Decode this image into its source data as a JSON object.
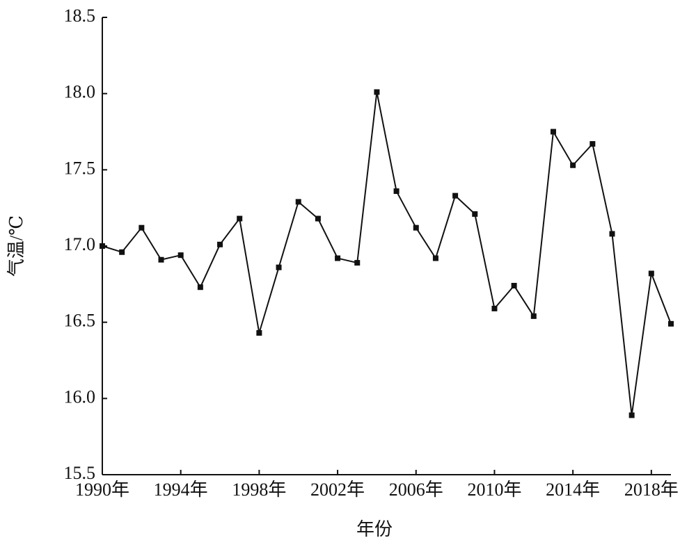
{
  "chart_data": {
    "type": "line",
    "xlabel": "年份",
    "ylabel": "气温/℃",
    "x": [
      1990,
      1991,
      1992,
      1993,
      1994,
      1995,
      1996,
      1997,
      1998,
      1999,
      2000,
      2001,
      2002,
      2003,
      2004,
      2005,
      2006,
      2007,
      2008,
      2009,
      2010,
      2011,
      2012,
      2013,
      2014,
      2015,
      2016,
      2017,
      2018,
      2019
    ],
    "values": [
      17.0,
      16.96,
      17.12,
      16.91,
      16.94,
      16.73,
      17.01,
      17.18,
      16.43,
      16.86,
      17.29,
      17.18,
      16.92,
      16.89,
      18.01,
      17.36,
      17.12,
      16.92,
      17.33,
      17.21,
      16.59,
      16.74,
      16.54,
      17.75,
      17.53,
      17.67,
      17.08,
      15.89,
      16.82,
      16.49
    ],
    "color": "#111111",
    "xlim": [
      1990,
      2019
    ],
    "xticks": [
      {
        "value": 1990,
        "label": "1990年"
      },
      {
        "value": 1994,
        "label": "1994年"
      },
      {
        "value": 1998,
        "label": "1998年"
      },
      {
        "value": 2002,
        "label": "2002年"
      },
      {
        "value": 2006,
        "label": "2006年"
      },
      {
        "value": 2010,
        "label": "2010年"
      },
      {
        "value": 2014,
        "label": "2014年"
      },
      {
        "value": 2018,
        "label": "2018年"
      }
    ],
    "ylim": [
      15.5,
      18.5
    ],
    "yticks": [
      15.5,
      {
        "value": 16,
        "label": "16.0"
      },
      16.5,
      {
        "value": 17,
        "label": "17.0"
      },
      17.5,
      {
        "value": 18,
        "label": "18.0"
      },
      18.5
    ]
  }
}
